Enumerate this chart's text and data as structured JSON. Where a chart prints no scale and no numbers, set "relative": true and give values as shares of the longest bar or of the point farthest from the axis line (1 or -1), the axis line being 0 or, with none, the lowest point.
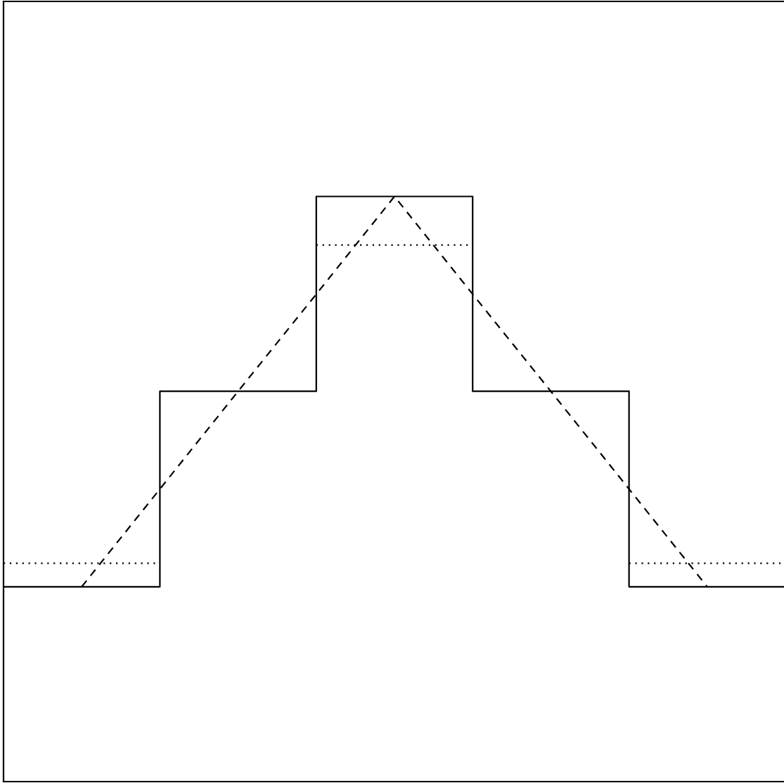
{
  "chart_data": {
    "type": "step",
    "relative": true,
    "categories": [
      null,
      null,
      null,
      null,
      null,
      null,
      null,
      null,
      null,
      null,
      null
    ],
    "series": [
      {
        "color": "#000000",
        "line_style": "solid",
        "values": [
          0.333,
          0.333,
          0.667,
          0.667,
          1,
          1,
          0.667,
          0.667,
          0.333,
          0.333,
          0.333
        ]
      },
      {
        "color": "#000000",
        "line_style": "dotted",
        "values": [
          0.373,
          0.373,
          null,
          null,
          0.917,
          0.917,
          null,
          null,
          0.373,
          0.373,
          0.373
        ]
      },
      {
        "type": "line",
        "color": "#000000",
        "line_style": "dashed",
        "values": [
          null,
          0.333,
          0.5,
          0.667,
          0.833,
          1,
          0.833,
          0.667,
          0.5,
          0.333,
          null
        ]
      }
    ]
  }
}
